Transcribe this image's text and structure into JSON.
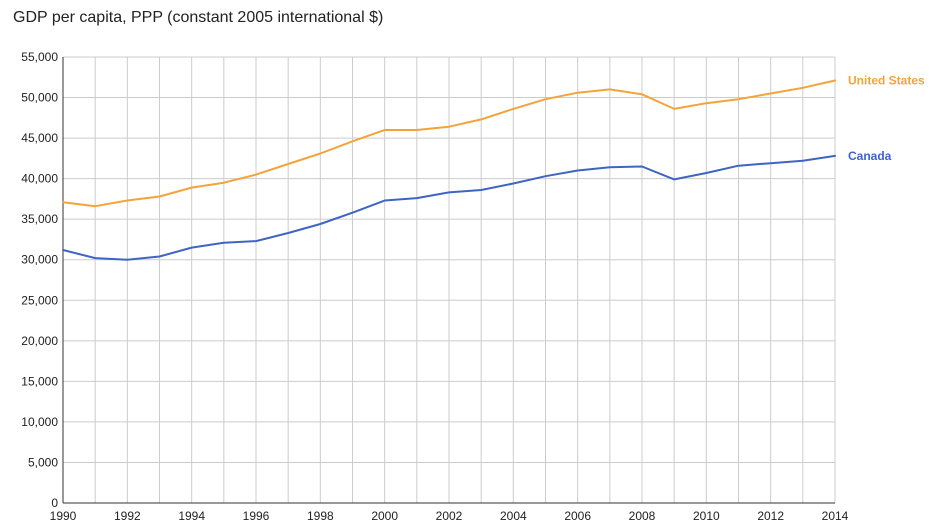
{
  "chart_data": {
    "type": "line",
    "title": "GDP per capita, PPP (constant 2005 international $)",
    "xlabel": "",
    "ylabel": "",
    "x": [
      1990,
      1991,
      1992,
      1993,
      1994,
      1995,
      1996,
      1997,
      1998,
      1999,
      2000,
      2001,
      2002,
      2003,
      2004,
      2005,
      2006,
      2007,
      2008,
      2009,
      2010,
      2011,
      2012,
      2013,
      2014
    ],
    "xlim": [
      1990,
      2014
    ],
    "ylim": [
      0,
      55000
    ],
    "x_ticks": [
      "1990",
      "1992",
      "1994",
      "1996",
      "1998",
      "2000",
      "2002",
      "2004",
      "2006",
      "2008",
      "2010",
      "2012",
      "2014"
    ],
    "y_ticks": [
      "0",
      "5,000",
      "10,000",
      "15,000",
      "20,000",
      "25,000",
      "30,000",
      "35,000",
      "40,000",
      "45,000",
      "50,000",
      "55,000"
    ],
    "grid": true,
    "legend": "right (inline labels at line ends)",
    "series": [
      {
        "name": "United States",
        "color": "#f4a33b",
        "values": [
          37100,
          36600,
          37300,
          37800,
          38900,
          39500,
          40500,
          41800,
          43100,
          44600,
          46000,
          46000,
          46400,
          47300,
          48600,
          49800,
          50600,
          51000,
          50400,
          48600,
          49300,
          49800,
          50500,
          51200,
          52100
        ]
      },
      {
        "name": "Canada",
        "color": "#3e64c4",
        "values": [
          31200,
          30200,
          30000,
          30400,
          31500,
          32100,
          32300,
          33300,
          34400,
          35800,
          37300,
          37600,
          38300,
          38600,
          39400,
          40300,
          41000,
          41400,
          41500,
          39900,
          40700,
          41600,
          41900,
          42200,
          42800
        ]
      }
    ]
  }
}
